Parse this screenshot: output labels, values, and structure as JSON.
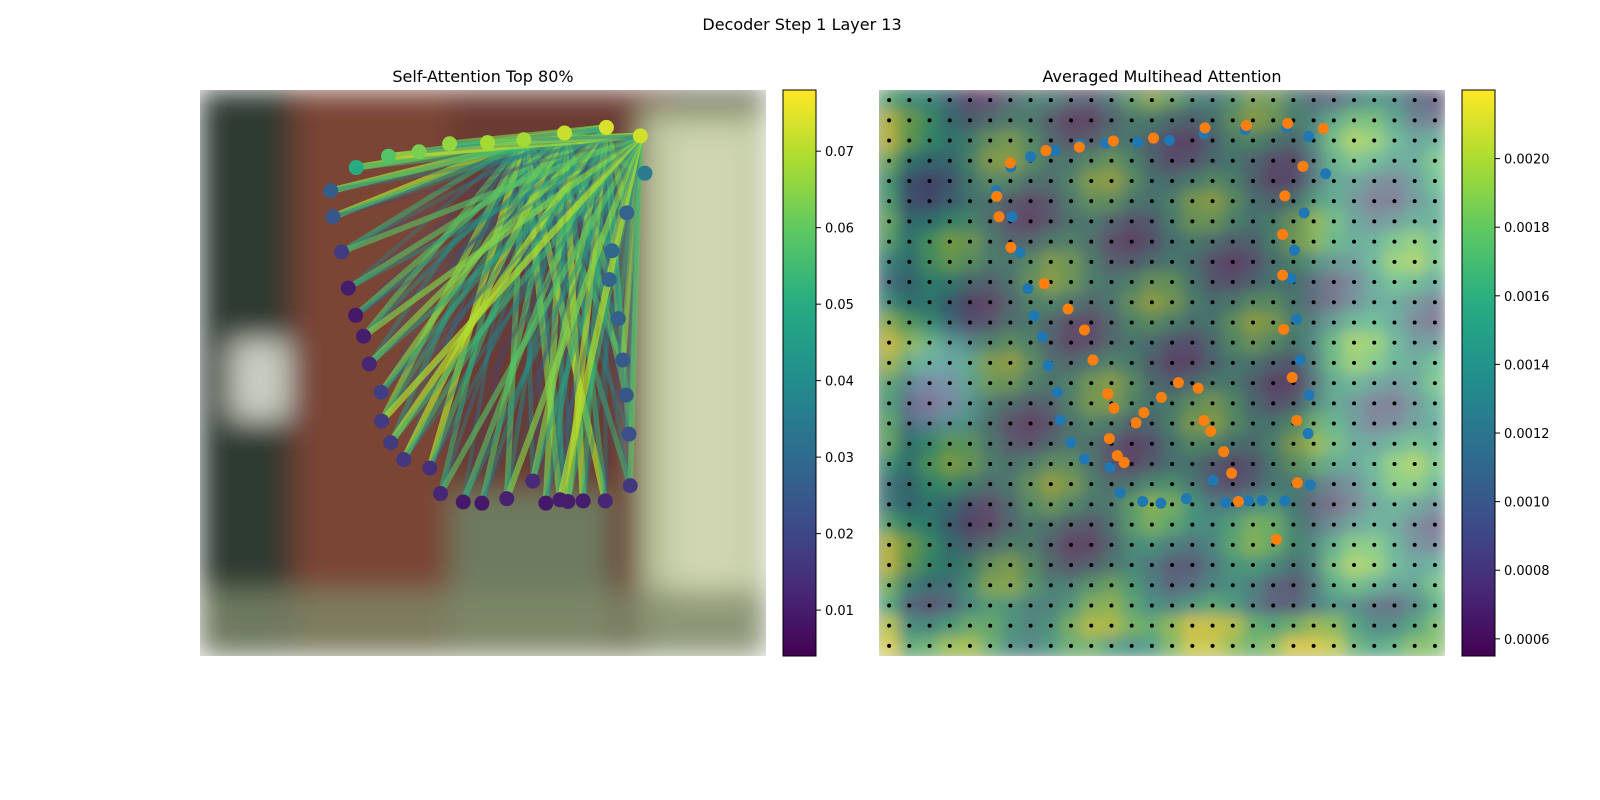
{
  "figure": {
    "title": "Decoder Step 1 Layer 13"
  },
  "colors": {
    "pred_points": "#1f77b4",
    "gt_points": "#ff7f0e",
    "grid_dots": "#000000",
    "colormap": "viridis"
  },
  "chart_data": [
    {
      "type": "scatter",
      "title": "Self-Attention Top 80%",
      "background": "blurred photo",
      "xlim": [
        0,
        1
      ],
      "ylim": [
        0,
        1
      ],
      "colorbar": {
        "range": [
          0.004,
          0.078
        ],
        "ticks": [
          0.01,
          0.02,
          0.03,
          0.04,
          0.05,
          0.06,
          0.07
        ],
        "labels": [
          "0.01",
          "0.02",
          "0.03",
          "0.04",
          "0.05",
          "0.06",
          "0.07"
        ]
      },
      "points": [
        {
          "x": 0.276,
          "y": 0.137,
          "v": 0.05
        },
        {
          "x": 0.333,
          "y": 0.117,
          "v": 0.058
        },
        {
          "x": 0.387,
          "y": 0.109,
          "v": 0.063
        },
        {
          "x": 0.441,
          "y": 0.095,
          "v": 0.066
        },
        {
          "x": 0.508,
          "y": 0.093,
          "v": 0.068
        },
        {
          "x": 0.572,
          "y": 0.088,
          "v": 0.068
        },
        {
          "x": 0.644,
          "y": 0.076,
          "v": 0.072
        },
        {
          "x": 0.718,
          "y": 0.066,
          "v": 0.074
        },
        {
          "x": 0.778,
          "y": 0.081,
          "v": 0.073
        },
        {
          "x": 0.786,
          "y": 0.147,
          "v": 0.035
        },
        {
          "x": 0.754,
          "y": 0.217,
          "v": 0.028
        },
        {
          "x": 0.728,
          "y": 0.284,
          "v": 0.029
        },
        {
          "x": 0.723,
          "y": 0.335,
          "v": 0.028
        },
        {
          "x": 0.739,
          "y": 0.404,
          "v": 0.027
        },
        {
          "x": 0.747,
          "y": 0.477,
          "v": 0.025
        },
        {
          "x": 0.753,
          "y": 0.539,
          "v": 0.024
        },
        {
          "x": 0.758,
          "y": 0.608,
          "v": 0.022
        },
        {
          "x": 0.76,
          "y": 0.699,
          "v": 0.016
        },
        {
          "x": 0.716,
          "y": 0.726,
          "v": 0.012
        },
        {
          "x": 0.677,
          "y": 0.726,
          "v": 0.01
        },
        {
          "x": 0.65,
          "y": 0.727,
          "v": 0.01
        },
        {
          "x": 0.636,
          "y": 0.724,
          "v": 0.01
        },
        {
          "x": 0.611,
          "y": 0.73,
          "v": 0.009
        },
        {
          "x": 0.588,
          "y": 0.691,
          "v": 0.013
        },
        {
          "x": 0.542,
          "y": 0.722,
          "v": 0.011
        },
        {
          "x": 0.498,
          "y": 0.73,
          "v": 0.009
        },
        {
          "x": 0.465,
          "y": 0.728,
          "v": 0.009
        },
        {
          "x": 0.425,
          "y": 0.713,
          "v": 0.012
        },
        {
          "x": 0.406,
          "y": 0.668,
          "v": 0.014
        },
        {
          "x": 0.36,
          "y": 0.653,
          "v": 0.016
        },
        {
          "x": 0.337,
          "y": 0.623,
          "v": 0.017
        },
        {
          "x": 0.321,
          "y": 0.585,
          "v": 0.017
        },
        {
          "x": 0.32,
          "y": 0.534,
          "v": 0.018
        },
        {
          "x": 0.299,
          "y": 0.484,
          "v": 0.012
        },
        {
          "x": 0.289,
          "y": 0.435,
          "v": 0.01
        },
        {
          "x": 0.275,
          "y": 0.398,
          "v": 0.009
        },
        {
          "x": 0.262,
          "y": 0.35,
          "v": 0.01
        },
        {
          "x": 0.25,
          "y": 0.286,
          "v": 0.017
        },
        {
          "x": 0.235,
          "y": 0.224,
          "v": 0.024
        },
        {
          "x": 0.231,
          "y": 0.178,
          "v": 0.026
        }
      ],
      "edges_min_value": 0.02,
      "edges_max_value": 0.075
    },
    {
      "type": "heatmap",
      "title": "Averaged Multihead Attention",
      "xlim": [
        0,
        1
      ],
      "ylim": [
        0,
        1
      ],
      "grid": {
        "rows": 28,
        "cols": 28
      },
      "colorbar": {
        "range": [
          0.00055,
          0.0022
        ],
        "ticks": [
          0.0006,
          0.0008,
          0.001,
          0.0012,
          0.0014,
          0.0016,
          0.0018,
          0.002
        ],
        "labels": [
          "0.0006",
          "0.0008",
          "0.0010",
          "0.0012",
          "0.0014",
          "0.0016",
          "0.0018",
          "0.0020"
        ]
      },
      "series": [
        {
          "color": "#1f77b4",
          "points": [
            {
              "x": 0.207,
              "y": 0.178
            },
            {
              "x": 0.233,
              "y": 0.136
            },
            {
              "x": 0.268,
              "y": 0.118
            },
            {
              "x": 0.311,
              "y": 0.107
            },
            {
              "x": 0.355,
              "y": 0.096
            },
            {
              "x": 0.4,
              "y": 0.094
            },
            {
              "x": 0.457,
              "y": 0.092
            },
            {
              "x": 0.513,
              "y": 0.089
            },
            {
              "x": 0.574,
              "y": 0.077
            },
            {
              "x": 0.647,
              "y": 0.07
            },
            {
              "x": 0.72,
              "y": 0.066
            },
            {
              "x": 0.759,
              "y": 0.082
            },
            {
              "x": 0.789,
              "y": 0.148
            },
            {
              "x": 0.751,
              "y": 0.217
            },
            {
              "x": 0.734,
              "y": 0.283
            },
            {
              "x": 0.728,
              "y": 0.333
            },
            {
              "x": 0.738,
              "y": 0.405
            },
            {
              "x": 0.744,
              "y": 0.477
            },
            {
              "x": 0.76,
              "y": 0.539
            },
            {
              "x": 0.758,
              "y": 0.607
            },
            {
              "x": 0.762,
              "y": 0.698
            },
            {
              "x": 0.717,
              "y": 0.726
            },
            {
              "x": 0.677,
              "y": 0.725
            },
            {
              "x": 0.653,
              "y": 0.726
            },
            {
              "x": 0.636,
              "y": 0.725
            },
            {
              "x": 0.612,
              "y": 0.729
            },
            {
              "x": 0.59,
              "y": 0.69
            },
            {
              "x": 0.543,
              "y": 0.722
            },
            {
              "x": 0.498,
              "y": 0.73
            },
            {
              "x": 0.466,
              "y": 0.727
            },
            {
              "x": 0.426,
              "y": 0.712
            },
            {
              "x": 0.408,
              "y": 0.667
            },
            {
              "x": 0.363,
              "y": 0.652
            },
            {
              "x": 0.339,
              "y": 0.623
            },
            {
              "x": 0.32,
              "y": 0.583
            },
            {
              "x": 0.315,
              "y": 0.534
            },
            {
              "x": 0.299,
              "y": 0.487
            },
            {
              "x": 0.289,
              "y": 0.436
            },
            {
              "x": 0.274,
              "y": 0.399
            },
            {
              "x": 0.263,
              "y": 0.351
            },
            {
              "x": 0.249,
              "y": 0.287
            },
            {
              "x": 0.235,
              "y": 0.224
            }
          ]
        },
        {
          "color": "#ff7f0e",
          "points": [
            {
              "x": 0.208,
              "y": 0.188
            },
            {
              "x": 0.212,
              "y": 0.224
            },
            {
              "x": 0.233,
              "y": 0.278
            },
            {
              "x": 0.232,
              "y": 0.129
            },
            {
              "x": 0.295,
              "y": 0.107
            },
            {
              "x": 0.354,
              "y": 0.101
            },
            {
              "x": 0.414,
              "y": 0.09
            },
            {
              "x": 0.485,
              "y": 0.085
            },
            {
              "x": 0.576,
              "y": 0.067
            },
            {
              "x": 0.649,
              "y": 0.063
            },
            {
              "x": 0.722,
              "y": 0.059
            },
            {
              "x": 0.785,
              "y": 0.068
            },
            {
              "x": 0.749,
              "y": 0.135
            },
            {
              "x": 0.717,
              "y": 0.187
            },
            {
              "x": 0.713,
              "y": 0.255
            },
            {
              "x": 0.713,
              "y": 0.327
            },
            {
              "x": 0.715,
              "y": 0.423
            },
            {
              "x": 0.73,
              "y": 0.508
            },
            {
              "x": 0.738,
              "y": 0.584
            },
            {
              "x": 0.739,
              "y": 0.694
            },
            {
              "x": 0.702,
              "y": 0.794
            },
            {
              "x": 0.635,
              "y": 0.727
            },
            {
              "x": 0.623,
              "y": 0.677
            },
            {
              "x": 0.609,
              "y": 0.639
            },
            {
              "x": 0.586,
              "y": 0.603
            },
            {
              "x": 0.574,
              "y": 0.584
            },
            {
              "x": 0.564,
              "y": 0.527
            },
            {
              "x": 0.529,
              "y": 0.517
            },
            {
              "x": 0.499,
              "y": 0.543
            },
            {
              "x": 0.468,
              "y": 0.57
            },
            {
              "x": 0.454,
              "y": 0.588
            },
            {
              "x": 0.415,
              "y": 0.562
            },
            {
              "x": 0.407,
              "y": 0.616
            },
            {
              "x": 0.421,
              "y": 0.646
            },
            {
              "x": 0.433,
              "y": 0.658
            },
            {
              "x": 0.404,
              "y": 0.537
            },
            {
              "x": 0.378,
              "y": 0.477
            },
            {
              "x": 0.363,
              "y": 0.424
            },
            {
              "x": 0.334,
              "y": 0.387
            },
            {
              "x": 0.292,
              "y": 0.342
            }
          ]
        }
      ]
    }
  ]
}
